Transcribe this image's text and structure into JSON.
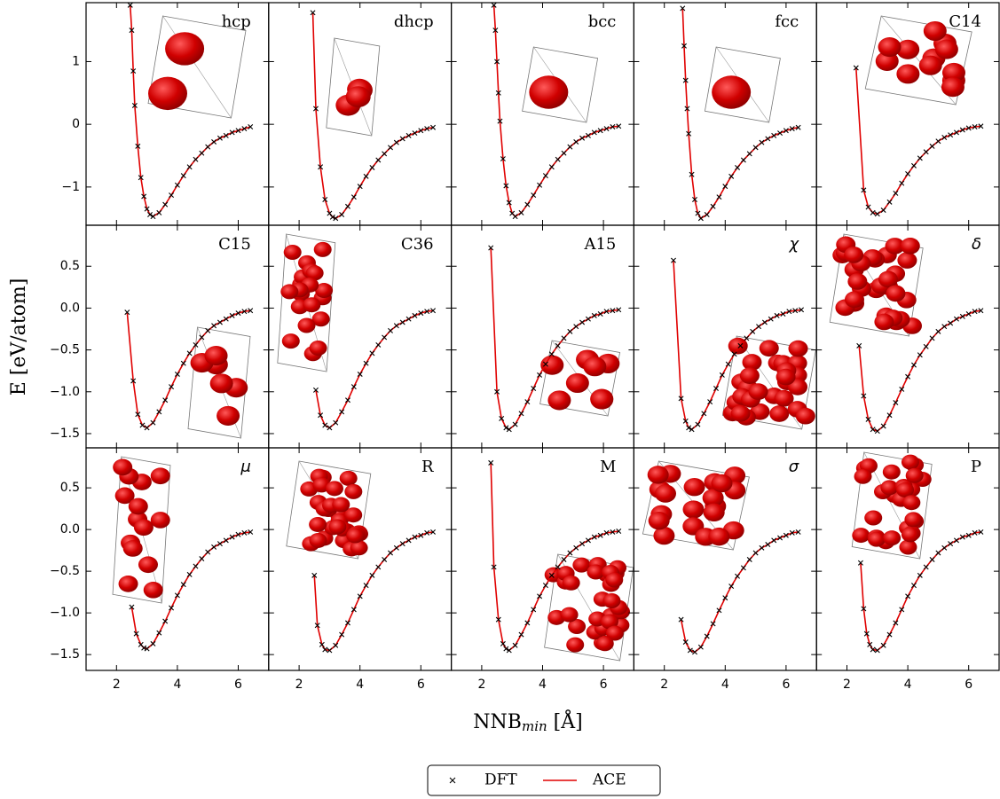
{
  "ylabel": "E [eV/atom]",
  "xlabel": {
    "text": "NNB",
    "subscript": "min",
    "unit": " [Å]"
  },
  "xlim": [
    1,
    7
  ],
  "xticks": [
    2,
    4,
    6
  ],
  "rows": [
    {
      "ylim": [
        -1.61,
        1.94
      ],
      "yticks": [
        {
          "value": -1,
          "label": "−1"
        },
        0,
        1
      ]
    },
    {
      "ylim": [
        -1.67,
        0.99
      ],
      "yticks": [
        {
          "value": -1.5,
          "label": "−1.5"
        },
        {
          "value": -1.0,
          "label": "−1.0"
        },
        {
          "value": -0.5,
          "label": "−0.5"
        },
        {
          "value": 0.0,
          "label": "0.0"
        },
        0.5
      ]
    },
    {
      "ylim": [
        -1.69,
        0.98
      ],
      "yticks": [
        {
          "value": -1.5,
          "label": "−1.5"
        },
        {
          "value": -1.0,
          "label": "−1.0"
        },
        {
          "value": -0.5,
          "label": "−0.5"
        },
        {
          "value": 0.0,
          "label": "0.0"
        },
        0.5
      ]
    }
  ],
  "legend": {
    "position": "lower center",
    "entries": [
      {
        "name": "DFT",
        "color": "#000000",
        "marker": "x"
      },
      {
        "name": "ACE",
        "color": "#e00000",
        "marker": "line"
      }
    ]
  },
  "chart_data": [
    {
      "type": "line",
      "title": "hcp",
      "x": [
        2.45,
        2.5,
        2.55,
        2.6,
        2.7,
        2.8,
        2.9,
        3.0,
        3.1,
        3.2,
        3.4,
        3.6,
        3.8,
        4.0,
        4.2,
        4.4,
        4.6,
        4.8,
        5.0,
        5.2,
        5.4,
        5.6,
        5.8,
        6.0,
        6.2,
        6.4
      ],
      "dft": [
        1.9,
        1.5,
        0.85,
        0.3,
        -0.35,
        -0.85,
        -1.15,
        -1.35,
        -1.44,
        -1.47,
        -1.41,
        -1.28,
        -1.13,
        -0.97,
        -0.82,
        -0.68,
        -0.56,
        -0.46,
        -0.36,
        -0.28,
        -0.22,
        -0.18,
        -0.13,
        -0.1,
        -0.07,
        -0.04
      ],
      "ace": [
        1.9,
        1.5,
        0.85,
        0.3,
        -0.35,
        -0.85,
        -1.15,
        -1.35,
        -1.44,
        -1.47,
        -1.41,
        -1.28,
        -1.13,
        -0.97,
        -0.82,
        -0.68,
        -0.56,
        -0.46,
        -0.36,
        -0.28,
        -0.22,
        -0.18,
        -0.13,
        -0.1,
        -0.07,
        -0.04
      ]
    },
    {
      "type": "line",
      "title": "dhcp",
      "x": [
        2.45,
        2.55,
        2.7,
        2.85,
        3.0,
        3.1,
        3.2,
        3.4,
        3.6,
        3.8,
        4.0,
        4.2,
        4.4,
        4.6,
        4.8,
        5.0,
        5.2,
        5.4,
        5.6,
        5.8,
        6.0,
        6.2,
        6.4
      ],
      "dft": [
        1.78,
        0.25,
        -0.68,
        -1.2,
        -1.42,
        -1.48,
        -1.5,
        -1.44,
        -1.31,
        -1.16,
        -0.99,
        -0.83,
        -0.69,
        -0.57,
        -0.47,
        -0.37,
        -0.29,
        -0.23,
        -0.18,
        -0.14,
        -0.1,
        -0.07,
        -0.05
      ],
      "ace": [
        1.78,
        0.25,
        -0.68,
        -1.2,
        -1.42,
        -1.48,
        -1.5,
        -1.44,
        -1.31,
        -1.16,
        -0.99,
        -0.83,
        -0.69,
        -0.57,
        -0.47,
        -0.37,
        -0.29,
        -0.23,
        -0.18,
        -0.14,
        -0.1,
        -0.07,
        -0.05
      ]
    },
    {
      "type": "line",
      "title": "bcc",
      "x": [
        2.4,
        2.45,
        2.5,
        2.55,
        2.6,
        2.7,
        2.8,
        2.9,
        3.0,
        3.1,
        3.3,
        3.5,
        3.7,
        3.9,
        4.1,
        4.3,
        4.5,
        4.7,
        4.9,
        5.1,
        5.3,
        5.5,
        5.7,
        5.9,
        6.1,
        6.3,
        6.5
      ],
      "dft": [
        1.9,
        1.5,
        1.0,
        0.5,
        0.05,
        -0.55,
        -0.98,
        -1.25,
        -1.42,
        -1.47,
        -1.41,
        -1.28,
        -1.13,
        -0.97,
        -0.82,
        -0.68,
        -0.56,
        -0.46,
        -0.36,
        -0.28,
        -0.22,
        -0.18,
        -0.13,
        -0.1,
        -0.07,
        -0.04,
        -0.03
      ],
      "ace": [
        1.9,
        1.5,
        1.0,
        0.5,
        0.05,
        -0.55,
        -0.98,
        -1.25,
        -1.42,
        -1.47,
        -1.41,
        -1.28,
        -1.13,
        -0.97,
        -0.82,
        -0.68,
        -0.56,
        -0.46,
        -0.36,
        -0.28,
        -0.22,
        -0.18,
        -0.13,
        -0.1,
        -0.07,
        -0.04,
        -0.03
      ]
    },
    {
      "type": "line",
      "title": "fcc",
      "x": [
        2.6,
        2.65,
        2.7,
        2.75,
        2.8,
        2.9,
        3.0,
        3.1,
        3.2,
        3.4,
        3.6,
        3.8,
        4.0,
        4.2,
        4.4,
        4.6,
        4.8,
        5.0,
        5.2,
        5.4,
        5.6,
        5.8,
        6.0,
        6.2,
        6.4
      ],
      "dft": [
        1.85,
        1.25,
        0.7,
        0.25,
        -0.15,
        -0.8,
        -1.2,
        -1.42,
        -1.5,
        -1.44,
        -1.31,
        -1.16,
        -0.99,
        -0.83,
        -0.69,
        -0.57,
        -0.47,
        -0.37,
        -0.29,
        -0.23,
        -0.18,
        -0.14,
        -0.1,
        -0.07,
        -0.05
      ],
      "ace": [
        1.85,
        1.25,
        0.7,
        0.25,
        -0.15,
        -0.8,
        -1.2,
        -1.42,
        -1.5,
        -1.44,
        -1.31,
        -1.16,
        -0.99,
        -0.83,
        -0.69,
        -0.57,
        -0.47,
        -0.37,
        -0.29,
        -0.23,
        -0.18,
        -0.14,
        -0.1,
        -0.07,
        -0.05
      ]
    },
    {
      "type": "line",
      "title": "C14",
      "x": [
        2.3,
        2.55,
        2.7,
        2.85,
        3.0,
        3.2,
        3.4,
        3.6,
        3.8,
        4.0,
        4.2,
        4.4,
        4.6,
        4.8,
        5.0,
        5.2,
        5.4,
        5.6,
        5.8,
        6.0,
        6.2,
        6.4
      ],
      "dft": [
        0.9,
        -1.05,
        -1.32,
        -1.41,
        -1.43,
        -1.37,
        -1.24,
        -1.1,
        -0.94,
        -0.79,
        -0.66,
        -0.54,
        -0.44,
        -0.35,
        -0.27,
        -0.21,
        -0.17,
        -0.13,
        -0.09,
        -0.06,
        -0.04,
        -0.03
      ],
      "ace": [
        0.9,
        -1.05,
        -1.32,
        -1.41,
        -1.43,
        -1.37,
        -1.24,
        -1.1,
        -0.94,
        -0.79,
        -0.66,
        -0.54,
        -0.44,
        -0.35,
        -0.27,
        -0.21,
        -0.17,
        -0.13,
        -0.09,
        -0.06,
        -0.04,
        -0.03
      ]
    },
    {
      "type": "line",
      "title": "C15",
      "x": [
        2.35,
        2.55,
        2.7,
        2.85,
        3.0,
        3.2,
        3.4,
        3.6,
        3.8,
        4.0,
        4.2,
        4.4,
        4.6,
        4.8,
        5.0,
        5.2,
        5.4,
        5.6,
        5.8,
        6.0,
        6.2,
        6.4
      ],
      "dft": [
        -0.05,
        -0.87,
        -1.27,
        -1.4,
        -1.43,
        -1.37,
        -1.24,
        -1.1,
        -0.94,
        -0.79,
        -0.66,
        -0.54,
        -0.44,
        -0.35,
        -0.27,
        -0.21,
        -0.17,
        -0.13,
        -0.09,
        -0.06,
        -0.04,
        -0.03
      ],
      "ace": [
        -0.05,
        -0.87,
        -1.27,
        -1.4,
        -1.43,
        -1.37,
        -1.24,
        -1.1,
        -0.94,
        -0.79,
        -0.66,
        -0.54,
        -0.44,
        -0.35,
        -0.27,
        -0.21,
        -0.17,
        -0.13,
        -0.09,
        -0.06,
        -0.04,
        -0.03
      ]
    },
    {
      "type": "line",
      "title": "C36",
      "x": [
        2.55,
        2.7,
        2.85,
        3.0,
        3.2,
        3.4,
        3.6,
        3.8,
        4.0,
        4.2,
        4.4,
        4.6,
        4.8,
        5.0,
        5.2,
        5.4,
        5.6,
        5.8,
        6.0,
        6.2,
        6.4
      ],
      "dft": [
        -0.98,
        -1.28,
        -1.4,
        -1.43,
        -1.37,
        -1.24,
        -1.1,
        -0.94,
        -0.79,
        -0.66,
        -0.54,
        -0.44,
        -0.35,
        -0.27,
        -0.21,
        -0.17,
        -0.13,
        -0.09,
        -0.06,
        -0.04,
        -0.03
      ],
      "ace": [
        -0.98,
        -1.28,
        -1.4,
        -1.43,
        -1.37,
        -1.24,
        -1.1,
        -0.94,
        -0.79,
        -0.66,
        -0.54,
        -0.44,
        -0.35,
        -0.27,
        -0.21,
        -0.17,
        -0.13,
        -0.09,
        -0.06,
        -0.04,
        -0.03
      ]
    },
    {
      "type": "line",
      "title": "A15",
      "x": [
        2.3,
        2.5,
        2.65,
        2.8,
        2.9,
        3.1,
        3.3,
        3.5,
        3.7,
        3.9,
        4.1,
        4.3,
        4.5,
        4.7,
        4.9,
        5.1,
        5.3,
        5.5,
        5.7,
        5.9,
        6.1,
        6.3,
        6.5
      ],
      "dft": [
        0.72,
        -1.0,
        -1.32,
        -1.43,
        -1.45,
        -1.39,
        -1.26,
        -1.12,
        -0.96,
        -0.8,
        -0.67,
        -0.55,
        -0.45,
        -0.36,
        -0.28,
        -0.22,
        -0.17,
        -0.13,
        -0.09,
        -0.07,
        -0.04,
        -0.03,
        -0.02
      ],
      "ace": [
        0.72,
        -1.0,
        -1.32,
        -1.43,
        -1.45,
        -1.39,
        -1.26,
        -1.12,
        -0.96,
        -0.8,
        -0.67,
        -0.55,
        -0.45,
        -0.36,
        -0.28,
        -0.22,
        -0.17,
        -0.13,
        -0.09,
        -0.07,
        -0.04,
        -0.03,
        -0.02
      ]
    },
    {
      "type": "line",
      "title": "χ",
      "x": [
        2.3,
        2.55,
        2.7,
        2.8,
        2.9,
        3.1,
        3.3,
        3.5,
        3.7,
        3.9,
        4.1,
        4.3,
        4.5,
        4.7,
        4.9,
        5.1,
        5.3,
        5.5,
        5.7,
        5.9,
        6.1,
        6.3,
        6.5
      ],
      "dft": [
        0.57,
        -1.08,
        -1.35,
        -1.43,
        -1.45,
        -1.39,
        -1.26,
        -1.12,
        -0.96,
        -0.8,
        -0.67,
        -0.55,
        -0.45,
        -0.36,
        -0.28,
        -0.22,
        -0.17,
        -0.13,
        -0.09,
        -0.07,
        -0.04,
        -0.03,
        -0.02
      ],
      "ace": [
        0.57,
        -1.08,
        -1.35,
        -1.43,
        -1.45,
        -1.39,
        -1.26,
        -1.12,
        -0.96,
        -0.8,
        -0.67,
        -0.55,
        -0.45,
        -0.36,
        -0.28,
        -0.22,
        -0.17,
        -0.13,
        -0.09,
        -0.07,
        -0.04,
        -0.03,
        -0.02
      ]
    },
    {
      "type": "line",
      "title": "δ",
      "x": [
        2.4,
        2.55,
        2.7,
        2.85,
        3.0,
        3.2,
        3.4,
        3.6,
        3.8,
        4.0,
        4.2,
        4.4,
        4.6,
        4.8,
        5.0,
        5.2,
        5.4,
        5.6,
        5.8,
        6.0,
        6.2,
        6.4
      ],
      "dft": [
        -0.45,
        -1.05,
        -1.33,
        -1.45,
        -1.47,
        -1.41,
        -1.28,
        -1.13,
        -0.97,
        -0.82,
        -0.68,
        -0.56,
        -0.46,
        -0.36,
        -0.28,
        -0.22,
        -0.18,
        -0.13,
        -0.1,
        -0.07,
        -0.04,
        -0.03
      ],
      "ace": [
        -0.45,
        -1.05,
        -1.33,
        -1.45,
        -1.47,
        -1.41,
        -1.28,
        -1.13,
        -0.97,
        -0.82,
        -0.68,
        -0.56,
        -0.46,
        -0.36,
        -0.28,
        -0.22,
        -0.18,
        -0.13,
        -0.1,
        -0.07,
        -0.04,
        -0.03
      ]
    },
    {
      "type": "line",
      "title": "μ",
      "x": [
        2.5,
        2.65,
        2.8,
        2.9,
        3.0,
        3.2,
        3.4,
        3.6,
        3.8,
        4.0,
        4.2,
        4.4,
        4.6,
        4.8,
        5.0,
        5.2,
        5.4,
        5.6,
        5.8,
        6.0,
        6.2,
        6.4
      ],
      "dft": [
        -0.93,
        -1.25,
        -1.38,
        -1.42,
        -1.43,
        -1.37,
        -1.24,
        -1.1,
        -0.94,
        -0.79,
        -0.66,
        -0.54,
        -0.44,
        -0.35,
        -0.27,
        -0.21,
        -0.17,
        -0.13,
        -0.09,
        -0.06,
        -0.04,
        -0.03
      ],
      "ace": [
        -0.93,
        -1.25,
        -1.38,
        -1.42,
        -1.43,
        -1.37,
        -1.24,
        -1.1,
        -0.94,
        -0.79,
        -0.66,
        -0.54,
        -0.44,
        -0.35,
        -0.27,
        -0.21,
        -0.17,
        -0.13,
        -0.09,
        -0.06,
        -0.04,
        -0.03
      ]
    },
    {
      "type": "line",
      "title": "R",
      "x": [
        2.5,
        2.6,
        2.75,
        2.85,
        3.0,
        3.2,
        3.4,
        3.6,
        3.8,
        4.0,
        4.2,
        4.4,
        4.6,
        4.8,
        5.0,
        5.2,
        5.4,
        5.6,
        5.8,
        6.0,
        6.2,
        6.4
      ],
      "dft": [
        -0.55,
        -1.15,
        -1.38,
        -1.44,
        -1.45,
        -1.39,
        -1.26,
        -1.12,
        -0.96,
        -0.8,
        -0.67,
        -0.55,
        -0.45,
        -0.36,
        -0.28,
        -0.22,
        -0.17,
        -0.13,
        -0.09,
        -0.07,
        -0.04,
        -0.03
      ],
      "ace": [
        -0.55,
        -1.15,
        -1.38,
        -1.44,
        -1.45,
        -1.39,
        -1.26,
        -1.12,
        -0.96,
        -0.8,
        -0.67,
        -0.55,
        -0.45,
        -0.36,
        -0.28,
        -0.22,
        -0.17,
        -0.13,
        -0.09,
        -0.07,
        -0.04,
        -0.03
      ]
    },
    {
      "type": "line",
      "title": "M",
      "x": [
        2.3,
        2.4,
        2.55,
        2.7,
        2.8,
        2.9,
        3.1,
        3.3,
        3.5,
        3.7,
        3.9,
        4.1,
        4.3,
        4.5,
        4.7,
        4.9,
        5.1,
        5.3,
        5.5,
        5.7,
        5.9,
        6.1,
        6.3,
        6.5
      ],
      "dft": [
        0.8,
        -0.45,
        -1.08,
        -1.37,
        -1.43,
        -1.45,
        -1.39,
        -1.26,
        -1.12,
        -0.96,
        -0.8,
        -0.67,
        -0.55,
        -0.45,
        -0.36,
        -0.28,
        -0.22,
        -0.17,
        -0.13,
        -0.09,
        -0.07,
        -0.04,
        -0.03,
        -0.02
      ],
      "ace": [
        0.8,
        -0.45,
        -1.08,
        -1.37,
        -1.43,
        -1.45,
        -1.39,
        -1.26,
        -1.12,
        -0.96,
        -0.8,
        -0.67,
        -0.55,
        -0.45,
        -0.36,
        -0.28,
        -0.22,
        -0.17,
        -0.13,
        -0.09,
        -0.07,
        -0.04,
        -0.03,
        -0.02
      ]
    },
    {
      "type": "line",
      "title": "σ",
      "x": [
        2.55,
        2.7,
        2.85,
        3.0,
        3.2,
        3.4,
        3.6,
        3.8,
        4.0,
        4.2,
        4.4,
        4.6,
        4.8,
        5.0,
        5.2,
        5.4,
        5.6,
        5.8,
        6.0,
        6.2,
        6.4
      ],
      "dft": [
        -1.08,
        -1.35,
        -1.45,
        -1.47,
        -1.41,
        -1.28,
        -1.13,
        -0.97,
        -0.82,
        -0.68,
        -0.56,
        -0.46,
        -0.36,
        -0.28,
        -0.22,
        -0.18,
        -0.13,
        -0.1,
        -0.07,
        -0.04,
        -0.03
      ],
      "ace": [
        -1.08,
        -1.35,
        -1.45,
        -1.47,
        -1.41,
        -1.28,
        -1.13,
        -0.97,
        -0.82,
        -0.68,
        -0.56,
        -0.46,
        -0.36,
        -0.28,
        -0.22,
        -0.18,
        -0.13,
        -0.1,
        -0.07,
        -0.04,
        -0.03
      ]
    },
    {
      "type": "line",
      "title": "P",
      "x": [
        2.45,
        2.55,
        2.65,
        2.75,
        2.85,
        3.0,
        3.2,
        3.4,
        3.6,
        3.8,
        4.0,
        4.2,
        4.4,
        4.6,
        4.8,
        5.0,
        5.2,
        5.4,
        5.6,
        5.8,
        6.0,
        6.2,
        6.4
      ],
      "dft": [
        -0.4,
        -0.95,
        -1.25,
        -1.38,
        -1.44,
        -1.45,
        -1.39,
        -1.26,
        -1.12,
        -0.96,
        -0.8,
        -0.67,
        -0.55,
        -0.45,
        -0.36,
        -0.28,
        -0.22,
        -0.17,
        -0.13,
        -0.09,
        -0.07,
        -0.04,
        -0.03
      ],
      "ace": [
        -0.4,
        -0.95,
        -1.25,
        -1.38,
        -1.44,
        -1.45,
        -1.39,
        -1.26,
        -1.12,
        -0.96,
        -0.8,
        -0.67,
        -0.55,
        -0.45,
        -0.36,
        -0.28,
        -0.22,
        -0.17,
        -0.13,
        -0.09,
        -0.07,
        -0.04,
        -0.03
      ]
    }
  ]
}
